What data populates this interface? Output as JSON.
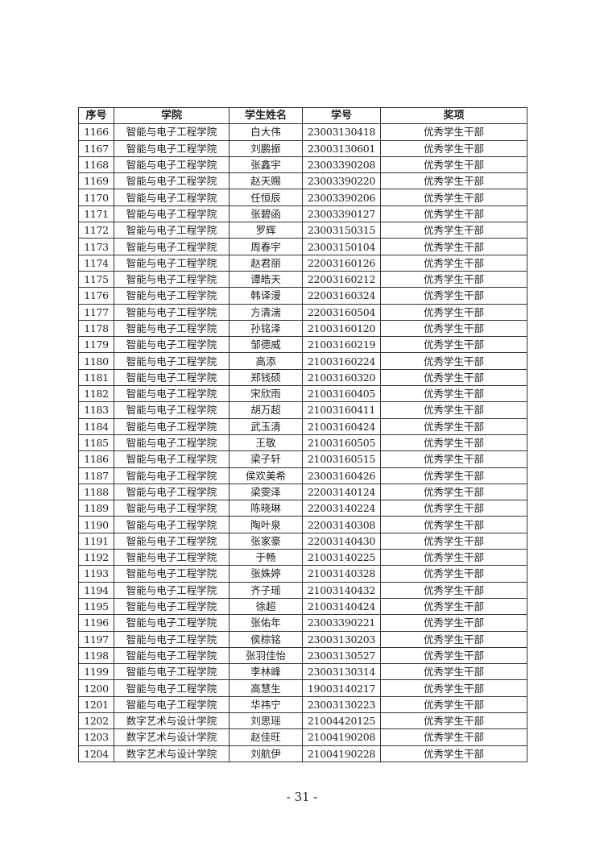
{
  "table": {
    "headers": [
      "序号",
      "学院",
      "学生姓名",
      "学号",
      "奖项"
    ],
    "rows": [
      [
        "1166",
        "智能与电子工程学院",
        "白大伟",
        "23003130418",
        "优秀学生干部"
      ],
      [
        "1167",
        "智能与电子工程学院",
        "刘鹏振",
        "23003130601",
        "优秀学生干部"
      ],
      [
        "1168",
        "智能与电子工程学院",
        "张鑫宇",
        "23003390208",
        "优秀学生干部"
      ],
      [
        "1169",
        "智能与电子工程学院",
        "赵天赐",
        "23003390220",
        "优秀学生干部"
      ],
      [
        "1170",
        "智能与电子工程学院",
        "任恒辰",
        "23003390206",
        "优秀学生干部"
      ],
      [
        "1171",
        "智能与电子工程学院",
        "张碧函",
        "23003390127",
        "优秀学生干部"
      ],
      [
        "1172",
        "智能与电子工程学院",
        "罗辉",
        "23003150315",
        "优秀学生干部"
      ],
      [
        "1173",
        "智能与电子工程学院",
        "周春宇",
        "23003150104",
        "优秀学生干部"
      ],
      [
        "1174",
        "智能与电子工程学院",
        "赵君丽",
        "22003160126",
        "优秀学生干部"
      ],
      [
        "1175",
        "智能与电子工程学院",
        "谭皓天",
        "22003160212",
        "优秀学生干部"
      ],
      [
        "1176",
        "智能与电子工程学院",
        "韩译漫",
        "22003160324",
        "优秀学生干部"
      ],
      [
        "1177",
        "智能与电子工程学院",
        "方清湍",
        "22003160504",
        "优秀学生干部"
      ],
      [
        "1178",
        "智能与电子工程学院",
        "孙铭泽",
        "21003160120",
        "优秀学生干部"
      ],
      [
        "1179",
        "智能与电子工程学院",
        "邹德威",
        "21003160219",
        "优秀学生干部"
      ],
      [
        "1180",
        "智能与电子工程学院",
        "高添",
        "21003160224",
        "优秀学生干部"
      ],
      [
        "1181",
        "智能与电子工程学院",
        "郑钱硕",
        "21003160320",
        "优秀学生干部"
      ],
      [
        "1182",
        "智能与电子工程学院",
        "宋欣雨",
        "21003160405",
        "优秀学生干部"
      ],
      [
        "1183",
        "智能与电子工程学院",
        "胡万超",
        "21003160411",
        "优秀学生干部"
      ],
      [
        "1184",
        "智能与电子工程学院",
        "武玉清",
        "21003160424",
        "优秀学生干部"
      ],
      [
        "1185",
        "智能与电子工程学院",
        "王敬",
        "21003160505",
        "优秀学生干部"
      ],
      [
        "1186",
        "智能与电子工程学院",
        "梁子轩",
        "21003160515",
        "优秀学生干部"
      ],
      [
        "1187",
        "智能与电子工程学院",
        "侯欢美希",
        "23003160426",
        "优秀学生干部"
      ],
      [
        "1188",
        "智能与电子工程学院",
        "梁雯泽",
        "22003140124",
        "优秀学生干部"
      ],
      [
        "1189",
        "智能与电子工程学院",
        "陈晓琳",
        "22003140224",
        "优秀学生干部"
      ],
      [
        "1190",
        "智能与电子工程学院",
        "陶叶泉",
        "22003140308",
        "优秀学生干部"
      ],
      [
        "1191",
        "智能与电子工程学院",
        "张家豪",
        "22003140430",
        "优秀学生干部"
      ],
      [
        "1192",
        "智能与电子工程学院",
        "于畅",
        "21003140225",
        "优秀学生干部"
      ],
      [
        "1193",
        "智能与电子工程学院",
        "张姝婷",
        "21003140328",
        "优秀学生干部"
      ],
      [
        "1194",
        "智能与电子工程学院",
        "齐子瑶",
        "21003140432",
        "优秀学生干部"
      ],
      [
        "1195",
        "智能与电子工程学院",
        "徐超",
        "21003140424",
        "优秀学生干部"
      ],
      [
        "1196",
        "智能与电子工程学院",
        "张佑年",
        "23003390221",
        "优秀学生干部"
      ],
      [
        "1197",
        "智能与电子工程学院",
        "侯棕铭",
        "23003130203",
        "优秀学生干部"
      ],
      [
        "1198",
        "智能与电子工程学院",
        "张羽佳怡",
        "23003130527",
        "优秀学生干部"
      ],
      [
        "1199",
        "智能与电子工程学院",
        "李林峰",
        "23003130314",
        "优秀学生干部"
      ],
      [
        "1200",
        "智能与电子工程学院",
        "高慧生",
        "19003140217",
        "优秀学生干部"
      ],
      [
        "1201",
        "智能与电子工程学院",
        "华祎宁",
        "23003130223",
        "优秀学生干部"
      ],
      [
        "1202",
        "数字艺术与设计学院",
        "刘思瑶",
        "21004420125",
        "优秀学生干部"
      ],
      [
        "1203",
        "数字艺术与设计学院",
        "赵佳旺",
        "21004190208",
        "优秀学生干部"
      ],
      [
        "1204",
        "数字艺术与设计学院",
        "刘航伊",
        "21004190228",
        "优秀学生干部"
      ]
    ]
  },
  "page_number": "- 31 -"
}
